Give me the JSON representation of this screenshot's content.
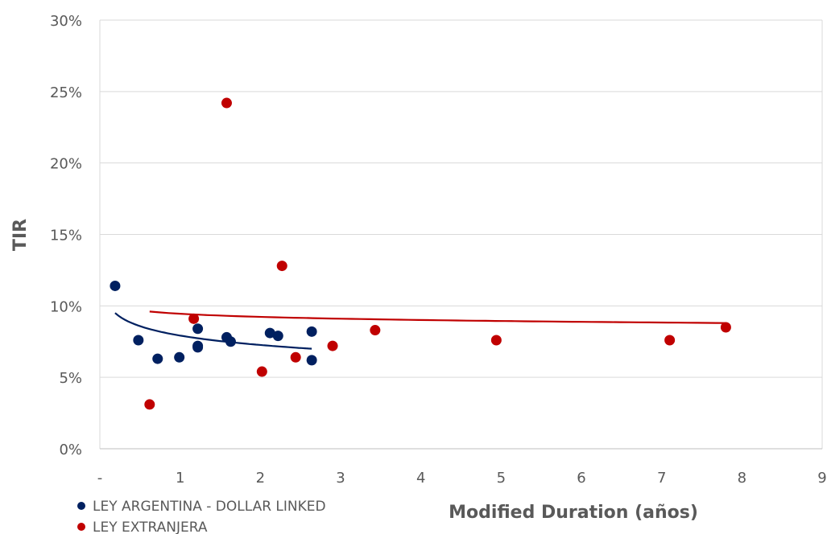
{
  "chart_data": {
    "type": "scatter",
    "xlabel": "Modified Duration (años)",
    "ylabel": "TIR",
    "xlim": [
      0,
      9
    ],
    "ylim": [
      0,
      30
    ],
    "x_ticks": [
      "-",
      "1",
      "2",
      "3",
      "4",
      "5",
      "6",
      "7",
      "8",
      "9"
    ],
    "y_ticks": [
      "0%",
      "5%",
      "10%",
      "15%",
      "20%",
      "25%",
      "30%"
    ],
    "grid": "horizontal",
    "legend_position": "bottom-left",
    "series": [
      {
        "name": "LEY ARGENTINA - DOLLAR LINKED",
        "color": "#002060",
        "points": [
          {
            "x": 0.19,
            "y": 11.4
          },
          {
            "x": 0.48,
            "y": 7.6
          },
          {
            "x": 0.72,
            "y": 6.3
          },
          {
            "x": 0.99,
            "y": 6.4
          },
          {
            "x": 1.22,
            "y": 8.4
          },
          {
            "x": 1.22,
            "y": 7.2
          },
          {
            "x": 1.22,
            "y": 7.1
          },
          {
            "x": 1.58,
            "y": 7.8
          },
          {
            "x": 1.63,
            "y": 7.5
          },
          {
            "x": 2.12,
            "y": 8.1
          },
          {
            "x": 2.22,
            "y": 7.9
          },
          {
            "x": 2.64,
            "y": 8.2
          },
          {
            "x": 2.64,
            "y": 6.2
          }
        ],
        "trendline": {
          "type": "logarithmic",
          "x_range": [
            0.19,
            2.64
          ],
          "y_start": 9.5,
          "y_end": 7.0
        }
      },
      {
        "name": "LEY EXTRANJERA",
        "color": "#C00000",
        "points": [
          {
            "x": 0.62,
            "y": 3.1
          },
          {
            "x": 1.17,
            "y": 9.1
          },
          {
            "x": 1.58,
            "y": 24.2
          },
          {
            "x": 2.02,
            "y": 5.4
          },
          {
            "x": 2.27,
            "y": 12.8
          },
          {
            "x": 2.44,
            "y": 6.4
          },
          {
            "x": 2.9,
            "y": 7.2
          },
          {
            "x": 3.43,
            "y": 8.3
          },
          {
            "x": 4.94,
            "y": 7.6
          },
          {
            "x": 7.1,
            "y": 7.6
          },
          {
            "x": 7.8,
            "y": 8.5
          }
        ],
        "trendline": {
          "type": "logarithmic",
          "x_range": [
            0.62,
            7.8
          ],
          "y_start": 9.6,
          "y_end": 8.8
        }
      }
    ]
  }
}
